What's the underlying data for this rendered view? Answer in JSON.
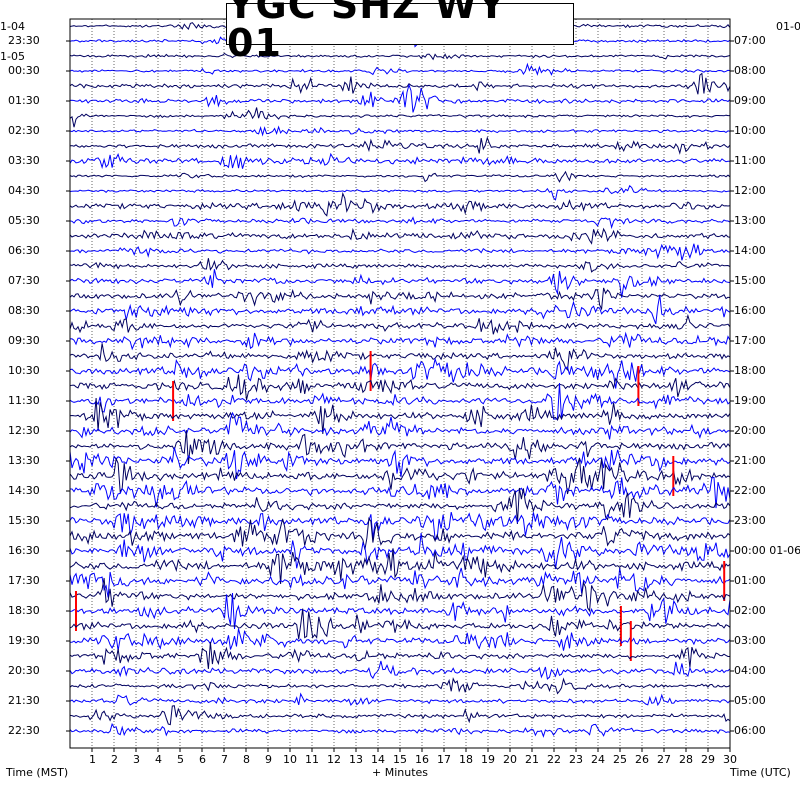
{
  "title": "YGC SHZ WY 01",
  "chart_data": {
    "type": "helicorder",
    "title": "YGC SHZ WY 01",
    "xlabel": "+ Minutes",
    "ylabel_left": "Time (MST)",
    "ylabel_right": "Time (UTC)",
    "xlim": [
      0,
      30
    ],
    "x_ticks": [
      "1",
      "2",
      "3",
      "4",
      "5",
      "6",
      "7",
      "8",
      "9",
      "10",
      "11",
      "12",
      "13",
      "14",
      "15",
      "16",
      "17",
      "18",
      "19",
      "20",
      "21",
      "22",
      "23",
      "24",
      "25",
      "26",
      "27",
      "28",
      "29",
      "30"
    ],
    "left_date_labels": [
      "1-04",
      "1-05"
    ],
    "right_date_label_top": "01-0",
    "left_time_labels": [
      "23:30",
      "00:30",
      "01:30",
      "02:30",
      "03:30",
      "04:30",
      "05:30",
      "06:30",
      "07:30",
      "08:30",
      "09:30",
      "10:30",
      "11:30",
      "12:30",
      "13:30",
      "14:30",
      "15:30",
      "16:30",
      "17:30",
      "18:30",
      "19:30",
      "20:30",
      "21:30",
      "22:30"
    ],
    "right_time_labels": [
      "07:00",
      "08:00",
      "09:00",
      "10:00",
      "11:00",
      "12:00",
      "13:00",
      "14:00",
      "15:00",
      "16:00",
      "17:00",
      "18:00",
      "19:00",
      "20:00",
      "21:00",
      "22:00",
      "23:00",
      "00:00 01-06",
      "01:00",
      "02:00",
      "03:00",
      "04:00",
      "05:00",
      "06:00"
    ],
    "trace_colors": [
      "#000060",
      "#0000ff"
    ],
    "clip_color": "#ff0000",
    "traces_per_hour": 2,
    "grid": true,
    "activity_by_trace": [
      1,
      1,
      1,
      1,
      2,
      2,
      1,
      1,
      2,
      3,
      1,
      1,
      3,
      2,
      3,
      2,
      2,
      3,
      3,
      4,
      3,
      4,
      3,
      5,
      4,
      4,
      4,
      4,
      4,
      5,
      5,
      5,
      4,
      5,
      5,
      5,
      5,
      5,
      4,
      4,
      4,
      4,
      3,
      3,
      2,
      2,
      2,
      2
    ]
  }
}
